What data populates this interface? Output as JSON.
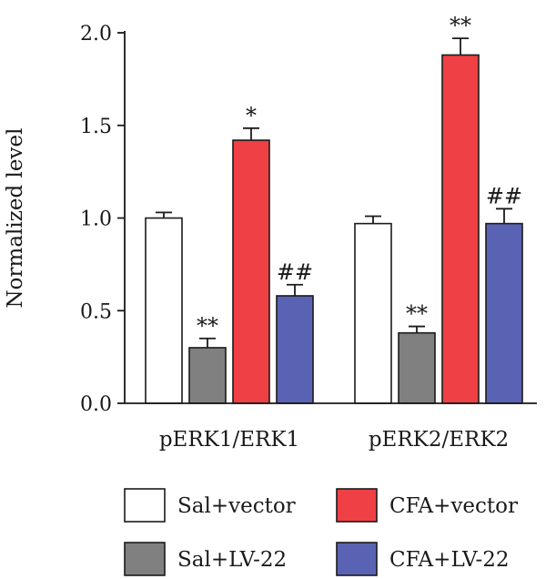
{
  "chart_data": {
    "type": "bar",
    "title": "",
    "xlabel": "",
    "ylabel": "Normalized level",
    "ylim": [
      0,
      2.0
    ],
    "yticks": [
      "0.0",
      "0.5",
      "1.0",
      "1.5",
      "2.0"
    ],
    "ytick_values": [
      0,
      0.5,
      1.0,
      1.5,
      2.0
    ],
    "categories": [
      "pERK1/ERK1",
      "pERK2/ERK2"
    ],
    "series": [
      {
        "name": "Sal+vector",
        "color": "#ffffff",
        "values": [
          1.0,
          0.97
        ],
        "errors": [
          0.03,
          0.04
        ],
        "annotations": [
          "",
          ""
        ]
      },
      {
        "name": "Sal+LV-22",
        "color": "#808080",
        "values": [
          0.3,
          0.38
        ],
        "errors": [
          0.05,
          0.035
        ],
        "annotations": [
          "**",
          "**"
        ]
      },
      {
        "name": "CFA+vector",
        "color": "#ef4045",
        "values": [
          1.42,
          1.88
        ],
        "errors": [
          0.065,
          0.09
        ],
        "annotations": [
          "*",
          "**"
        ]
      },
      {
        "name": "CFA+LV-22",
        "color": "#5a63b3",
        "values": [
          0.58,
          0.97
        ],
        "errors": [
          0.06,
          0.08
        ],
        "annotations": [
          "##",
          "##"
        ]
      }
    ],
    "grid": false,
    "legend_position": "bottom"
  }
}
